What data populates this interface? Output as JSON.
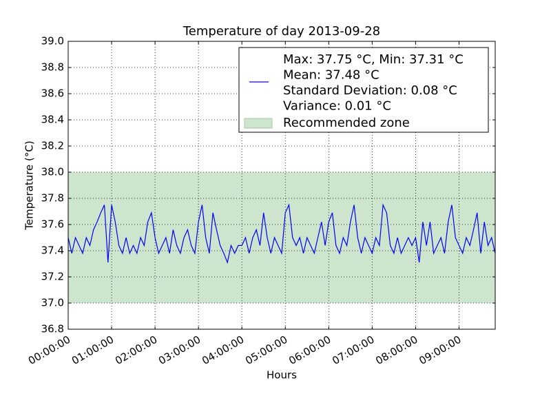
{
  "chart_data": {
    "type": "line",
    "title": "Temperature of day 2013-09-28",
    "x_label": "Hours",
    "y_label": "Temperature (°C)",
    "x": [
      0,
      5,
      10,
      15,
      20,
      25,
      30,
      35,
      40,
      45,
      50,
      55,
      60,
      65,
      70,
      75,
      80,
      85,
      90,
      95,
      100,
      105,
      110,
      115,
      120,
      125,
      130,
      135,
      140,
      145,
      150,
      155,
      160,
      165,
      170,
      175,
      180,
      185,
      190,
      195,
      200,
      205,
      210,
      215,
      220,
      225,
      230,
      235,
      240,
      245,
      250,
      255,
      260,
      265,
      270,
      275,
      280,
      285,
      290,
      295,
      300,
      305,
      310,
      315,
      320,
      325,
      330,
      335,
      340,
      345,
      350,
      355,
      360,
      365,
      370,
      375,
      380,
      385,
      390,
      395,
      400,
      405,
      410,
      415,
      420,
      425,
      430,
      435,
      440,
      445,
      450,
      455,
      460,
      465,
      470,
      475,
      480,
      485,
      490,
      495,
      500,
      505,
      510,
      515,
      520,
      525,
      530,
      535,
      540,
      545,
      550,
      555,
      560,
      565,
      570,
      575,
      580,
      585,
      590
    ],
    "series": [
      {
        "name": [
          "Max: 37.75 °C, Min: 37.31 °C",
          "Mean: 37.48 °C",
          "Standard Deviation: 0.08 °C",
          "Variance: 0.01 °C"
        ],
        "color": "#0000ff",
        "values": [
          37.5,
          37.38,
          37.5,
          37.44,
          37.38,
          37.5,
          37.44,
          37.56,
          37.62,
          37.69,
          37.75,
          37.31,
          37.75,
          37.62,
          37.44,
          37.38,
          37.5,
          37.38,
          37.44,
          37.38,
          37.5,
          37.44,
          37.62,
          37.69,
          37.5,
          37.38,
          37.44,
          37.5,
          37.38,
          37.56,
          37.44,
          37.38,
          37.5,
          37.56,
          37.44,
          37.38,
          37.62,
          37.75,
          37.5,
          37.38,
          37.69,
          37.56,
          37.44,
          37.38,
          37.31,
          37.44,
          37.38,
          37.44,
          37.44,
          37.5,
          37.38,
          37.5,
          37.56,
          37.44,
          37.69,
          37.5,
          37.38,
          37.5,
          37.44,
          37.38,
          37.69,
          37.75,
          37.5,
          37.44,
          37.5,
          37.38,
          37.5,
          37.44,
          37.38,
          37.5,
          37.62,
          37.44,
          37.62,
          37.69,
          37.44,
          37.38,
          37.5,
          37.44,
          37.62,
          37.75,
          37.5,
          37.38,
          37.5,
          37.44,
          37.38,
          37.5,
          37.44,
          37.75,
          37.69,
          37.44,
          37.38,
          37.5,
          37.38,
          37.44,
          37.5,
          37.44,
          37.5,
          37.31,
          37.62,
          37.44,
          37.62,
          37.38,
          37.44,
          37.5,
          37.38,
          37.62,
          37.75,
          37.5,
          37.44,
          37.38,
          37.5,
          37.44,
          37.56,
          37.69,
          37.38,
          37.62,
          37.44,
          37.5,
          37.38
        ]
      }
    ],
    "zones": [
      {
        "name": "Recommended zone",
        "range": [
          37,
          38
        ],
        "color": "#cde4cd"
      }
    ],
    "xlim": [
      0,
      590
    ],
    "xticks": [
      {
        "value": 0,
        "label": "00:00:00"
      },
      {
        "value": 60,
        "label": "01:00:00"
      },
      {
        "value": 120,
        "label": "02:00:00"
      },
      {
        "value": 180,
        "label": "03:00:00"
      },
      {
        "value": 240,
        "label": "04:00:00"
      },
      {
        "value": 300,
        "label": "05:00:00"
      },
      {
        "value": 360,
        "label": "06:00:00"
      },
      {
        "value": 420,
        "label": "07:00:00"
      },
      {
        "value": 480,
        "label": "08:00:00"
      },
      {
        "value": 540,
        "label": "09:00:00"
      }
    ],
    "ylim": [
      36.8,
      39
    ],
    "yticks": [
      36.8,
      {
        "value": 37,
        "label": "37.0"
      },
      37.2,
      37.4,
      37.6,
      37.8,
      {
        "value": 38,
        "label": "38.0"
      },
      38.2,
      38.4,
      38.6,
      38.8,
      {
        "value": 39,
        "label": "39.0"
      }
    ],
    "grid": true
  }
}
